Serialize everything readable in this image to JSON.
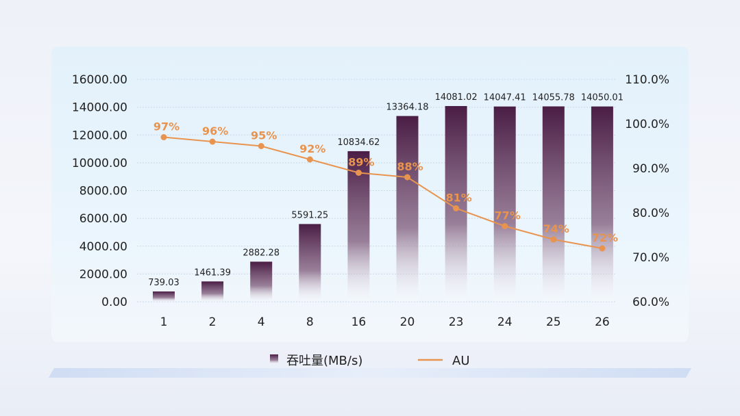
{
  "chart_data": {
    "type": "bar",
    "categories": [
      "1",
      "2",
      "4",
      "8",
      "16",
      "20",
      "23",
      "24",
      "25",
      "26"
    ],
    "series": [
      {
        "name": "吞吐量(MB/s)",
        "type": "bar",
        "axis": "left",
        "values": [
          739.03,
          1461.39,
          2882.28,
          5591.25,
          10834.62,
          13364.18,
          14081.02,
          14047.41,
          14055.78,
          14050.01
        ],
        "labels": [
          "739.03",
          "1461.39",
          "2882.28",
          "5591.25",
          "10834.62",
          "13364.18",
          "14081.02",
          "14047.41",
          "14055.78",
          "14050.01"
        ],
        "color": "#4a1d45"
      },
      {
        "name": "AU",
        "type": "line",
        "axis": "right",
        "values": [
          97,
          96,
          95,
          92,
          89,
          88,
          81,
          77,
          74,
          72
        ],
        "labels": [
          "97%",
          "96%",
          "95%",
          "92%",
          "89%",
          "88%",
          "81%",
          "77%",
          "74%",
          "72%"
        ],
        "color": "#e8944f"
      }
    ],
    "left_axis": {
      "ylim": [
        0,
        16000
      ],
      "ticks": [
        "0.00",
        "2000.00",
        "4000.00",
        "6000.00",
        "8000.00",
        "10000.00",
        "12000.00",
        "14000.00",
        "16000.00"
      ]
    },
    "right_axis": {
      "ylim": [
        60,
        110
      ],
      "ticks": [
        "60.0%",
        "70.0%",
        "80.0%",
        "90.0%",
        "100.0%",
        "110.0%"
      ]
    },
    "grid": true,
    "legend": {
      "position": "bottom",
      "items": [
        "吞吐量(MB/s)",
        "AU"
      ]
    }
  }
}
